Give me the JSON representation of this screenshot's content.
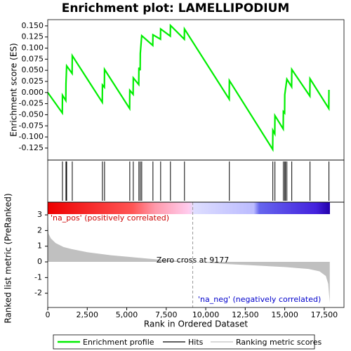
{
  "chart_data": {
    "type": "line",
    "title": "Enrichment plot: LAMELLIPODIUM",
    "xlabel": "Rank in Ordered Dataset",
    "ylabel": "Enrichment score (ES)",
    "xlim": [
      0,
      18750
    ],
    "xticks": [
      0,
      {
        "value": 2500,
        "label": "2,500"
      },
      {
        "value": 5000,
        "label": "5,000"
      },
      {
        "value": 7500,
        "label": "7,500"
      },
      {
        "value": 10000,
        "label": "10,000"
      },
      {
        "value": 12500,
        "label": "12,500"
      },
      {
        "value": 15000,
        "label": "15,000"
      },
      {
        "value": 17500,
        "label": "17,500"
      }
    ],
    "ylim": [
      -0.152,
      0.164
    ],
    "yticks": [
      {
        "value": 0.15,
        "label": "0.150"
      },
      {
        "value": 0.125,
        "label": "0.125"
      },
      {
        "value": 0.1,
        "label": "0.100"
      },
      {
        "value": 0.075,
        "label": "0.075"
      },
      {
        "value": 0.05,
        "label": "0.050"
      },
      {
        "value": 0.025,
        "label": "0.025"
      },
      {
        "value": 0,
        "label": "0.000"
      },
      {
        "value": -0.025,
        "label": "-0.025"
      },
      {
        "value": -0.05,
        "label": "-0.050"
      },
      {
        "value": -0.075,
        "label": "-0.075"
      },
      {
        "value": -0.1,
        "label": "-0.100"
      },
      {
        "value": -0.125,
        "label": "-0.125"
      }
    ],
    "series": [
      {
        "name": "Enrichment profile",
        "color": "#00ee00",
        "x": [
          0,
          922,
          932,
          1144,
          1154,
          1198,
          1543,
          1553,
          3452,
          3462,
          3585,
          3595,
          5183,
          5193,
          5405,
          5415,
          5760,
          5770,
          5849,
          5859,
          5948,
          6648,
          6658,
          7136,
          7146,
          7757,
          7767,
          8645,
          8655,
          11486,
          11496,
          14238,
          14248,
          14371,
          14381,
          14904,
          14914,
          14992,
          15002,
          15136,
          15436,
          15446,
          16590,
          16600,
          17789,
          17799
        ],
        "values": [
          0,
          -0.046,
          -0.006,
          -0.018,
          0.02,
          0.06,
          0.043,
          0.083,
          -0.022,
          0.017,
          0.012,
          0.052,
          -0.036,
          0.005,
          -0.004,
          0.033,
          0.018,
          0.056,
          0.05,
          0.088,
          0.128,
          0.106,
          0.13,
          0.12,
          0.143,
          0.127,
          0.151,
          0.12,
          0.143,
          -0.015,
          0.027,
          -0.128,
          -0.085,
          -0.093,
          -0.052,
          -0.082,
          -0.043,
          -0.046,
          -0.005,
          0.03,
          0.013,
          0.052,
          -0.008,
          0.031,
          -0.036,
          0.006
        ]
      }
    ],
    "hits": {
      "name": "Hits",
      "color": "#000000",
      "x": [
        932,
        1154,
        1198,
        1553,
        3462,
        3595,
        5193,
        5415,
        5770,
        5859,
        5948,
        6658,
        7146,
        7767,
        8655,
        11496,
        14248,
        14381,
        14914,
        15002,
        15047,
        15136,
        15446,
        16600,
        17799
      ]
    },
    "metric": {
      "name": "Ranking metric scores",
      "color": "#c0c0c0",
      "ylabel": "Ranked list metric (PreRanked)",
      "ylim": [
        -2.91,
        3.81
      ],
      "yticks": [
        3,
        2,
        1,
        0,
        -1,
        -2
      ],
      "x": [
        0,
        50,
        200,
        500,
        1000,
        1500,
        2500,
        4000,
        5000,
        7000,
        9177,
        11000,
        13000,
        15000,
        16500,
        17200,
        17600,
        17750,
        17850
      ],
      "values": [
        3.0,
        1.8,
        1.5,
        1.2,
        0.95,
        0.82,
        0.62,
        0.42,
        0.33,
        0.15,
        0,
        -0.12,
        -0.22,
        -0.33,
        -0.45,
        -0.6,
        -0.9,
        -1.4,
        -2.6
      ]
    },
    "annotations": [
      {
        "text": "'na_pos' (positively correlated)",
        "color": "#cc0000"
      },
      {
        "text": "'na_neg' (negatively correlated)",
        "color": "#0000cc"
      },
      {
        "text": "Zero cross at 9177",
        "x": 9177
      }
    ]
  }
}
